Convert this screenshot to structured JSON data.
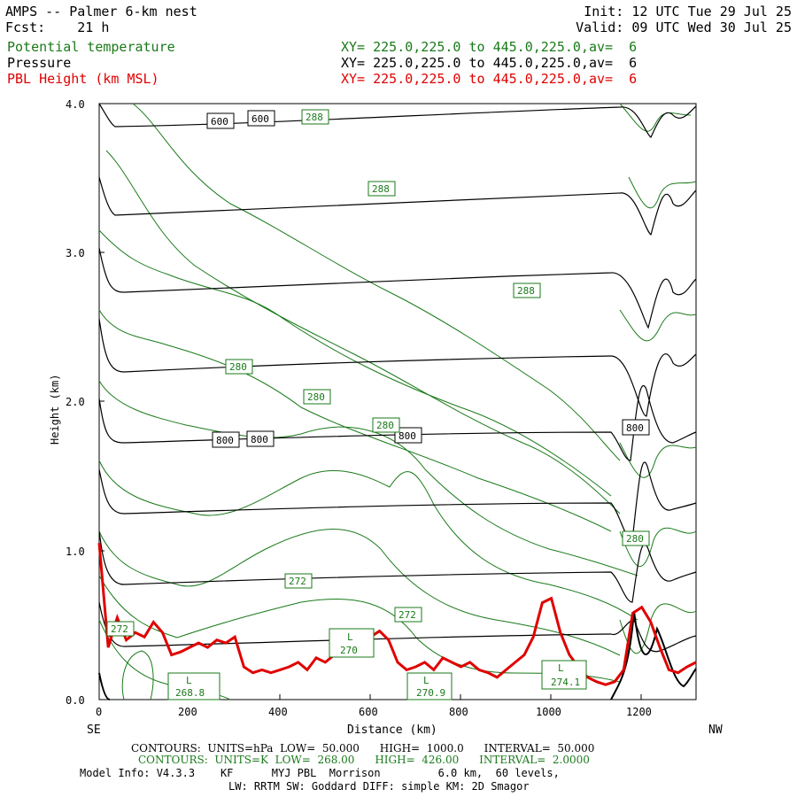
{
  "header": {
    "title": "AMPS -- Palmer 6-km nest",
    "fcst": "Fcst:    21 h",
    "init": "Init: 12 UTC Tue 29 Jul 25",
    "valid": "Valid: 09 UTC Wed 30 Jul 25",
    "rows": [
      {
        "name": "Potential temperature",
        "xy": "XY= 225.0,225.0 to 445.0,225.0,av=  6",
        "color": "#1a7a1a"
      },
      {
        "name": "Pressure",
        "xy": "XY= 225.0,225.0 to 445.0,225.0,av=  6",
        "color": "#000000"
      },
      {
        "name": "PBL Height (km MSL)",
        "xy": "XY= 225.0,225.0 to 445.0,225.0,av=  6",
        "color": "#e00000"
      }
    ]
  },
  "axes": {
    "ylabel": "Height (km)",
    "xlabel": "Distance (km)",
    "left_end": "SE",
    "right_end": "NW",
    "yticks": [
      "0.0",
      "1.0",
      "2.0",
      "3.0",
      "4.0"
    ],
    "xticks": [
      "0",
      "200",
      "400",
      "600",
      "800",
      "1000",
      "1200"
    ]
  },
  "labels": {
    "p600a": "600",
    "p600b": "600",
    "p800a": "800",
    "p800b": "800",
    "p800c": "800",
    "p800d": "800",
    "t288a": "288",
    "t288b": "288",
    "t288c": "288",
    "t280a": "280",
    "t280b": "280",
    "t280c": "280",
    "t280d": "280",
    "t272a": "272",
    "t272b": "272",
    "t272c": "272",
    "l1": "L",
    "l1v": "268.8",
    "l2": "L",
    "l2v": "270",
    "l3": "L",
    "l3v": "270.9",
    "l4": "L",
    "l4v": "274.1"
  },
  "footer": {
    "line1": "CONTOURS:  UNITS=hPa  LOW=  50.000      HIGH=  1000.0      INTERVAL=  50.000",
    "line2": "CONTOURS:  UNITS=K  LOW=  268.00      HIGH=  426.00      INTERVAL=  2.0000",
    "line3": "Model Info: V4.3.3    KF      MYJ PBL  Morrison         6.0 km,  60 levels,",
    "line4": "LW: RRTM SW: Goddard DIFF: simple KM: 2D Smagor"
  },
  "chart_data": {
    "type": "line",
    "title": "AMPS -- Palmer 6-km nest",
    "xlabel": "Distance (km)",
    "ylabel": "Height (km)",
    "xlim": [
      0,
      1320
    ],
    "ylim": [
      0,
      4.0
    ],
    "grid": false,
    "series": [
      {
        "name": "PBL Height (km MSL)",
        "color": "#e00000",
        "x": [
          0,
          20,
          40,
          60,
          80,
          100,
          120,
          140,
          160,
          180,
          200,
          220,
          240,
          260,
          280,
          300,
          320,
          340,
          360,
          380,
          400,
          420,
          440,
          460,
          480,
          500,
          520,
          540,
          560,
          580,
          600,
          620,
          640,
          660,
          680,
          700,
          720,
          740,
          760,
          780,
          800,
          820,
          840,
          860,
          880,
          900,
          920,
          940,
          960,
          980,
          1000,
          1020,
          1040,
          1060,
          1080,
          1100,
          1120,
          1140,
          1160,
          1180,
          1200,
          1220,
          1240,
          1260,
          1280,
          1300,
          1320
        ],
        "y": [
          1.05,
          0.35,
          0.55,
          0.4,
          0.45,
          0.42,
          0.52,
          0.45,
          0.3,
          0.32,
          0.35,
          0.38,
          0.35,
          0.4,
          0.38,
          0.42,
          0.22,
          0.18,
          0.2,
          0.18,
          0.2,
          0.22,
          0.25,
          0.2,
          0.28,
          0.25,
          0.3,
          0.32,
          0.35,
          0.3,
          0.42,
          0.46,
          0.4,
          0.25,
          0.2,
          0.22,
          0.25,
          0.2,
          0.28,
          0.25,
          0.22,
          0.25,
          0.2,
          0.18,
          0.15,
          0.2,
          0.25,
          0.3,
          0.42,
          0.65,
          0.68,
          0.45,
          0.3,
          0.22,
          0.15,
          0.12,
          0.1,
          0.12,
          0.2,
          0.58,
          0.62,
          0.52,
          0.35,
          0.2,
          0.18,
          0.22,
          0.25
        ]
      },
      {
        "name": "Pressure 600 hPa",
        "color": "#000000",
        "x": [
          0,
          100,
          200,
          300,
          400,
          500,
          600,
          700,
          800,
          900,
          1000,
          1100,
          1150,
          1180,
          1200,
          1220,
          1260,
          1300,
          1320
        ],
        "y": [
          3.85,
          3.86,
          3.88,
          3.9,
          3.92,
          3.93,
          3.94,
          3.95,
          3.96,
          3.97,
          3.97,
          3.97,
          3.95,
          3.9,
          3.8,
          3.98,
          3.92,
          3.96,
          3.95
        ]
      },
      {
        "name": "Pressure 800 hPa",
        "color": "#000000",
        "x": [
          0,
          20,
          100,
          200,
          300,
          400,
          500,
          600,
          700,
          800,
          900,
          1000,
          1100,
          1150,
          1180,
          1200,
          1220,
          1260,
          1300,
          1320
        ],
        "y": [
          2.0,
          1.7,
          1.72,
          1.74,
          1.76,
          1.77,
          1.78,
          1.79,
          1.8,
          1.8,
          1.79,
          1.78,
          1.76,
          1.6,
          1.7,
          1.85,
          1.65,
          1.72,
          1.68,
          1.7
        ]
      }
    ]
  }
}
